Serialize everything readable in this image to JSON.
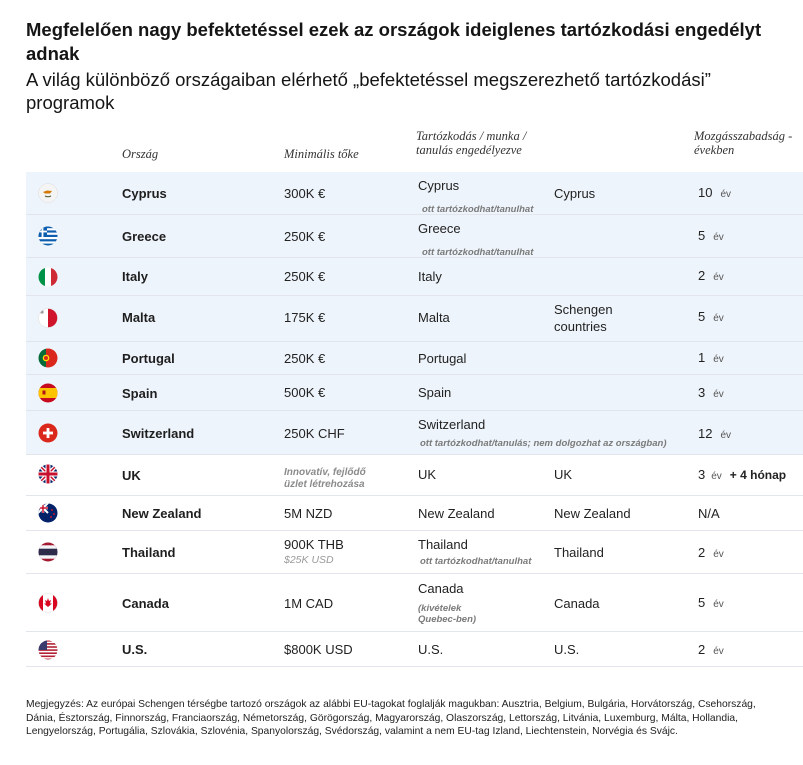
{
  "title": "Megfelelően nagy befektetéssel ezek az országok ideiglenes tartózkodási engedélyt adnak",
  "subtitle": "A világ különböző országaiban elérhető „befektetéssel megszerezhető tartózkodási” programok",
  "headers": {
    "country": "Ország",
    "capital": "Minimális tőke",
    "permit": "Tartózkodás / munka / tanulás engedélyezve",
    "mobility": "Mozgásszabadság - években"
  },
  "year_unit": "év",
  "rows": [
    {
      "country": "Cyprus",
      "flag": "flag-cyprus-icon",
      "capital": "300K €",
      "permit": "Cyprus",
      "permit_note": "ott tartózkodhat/tanulhat",
      "mobility": "Cyprus",
      "years": "10"
    },
    {
      "country": "Greece",
      "flag": "flag-greece-icon",
      "capital": "250K €",
      "permit": "Greece",
      "permit_note": "ott tartózkodhat/tanulhat",
      "mobility": "",
      "years": "5"
    },
    {
      "country": "Italy",
      "flag": "flag-italy-icon",
      "capital": "250K €",
      "permit": "Italy",
      "mobility": "",
      "years": "2"
    },
    {
      "country": "Malta",
      "flag": "flag-malta-icon",
      "capital": "175K €",
      "permit": "Malta",
      "mobility": "Schengen countries",
      "years": "5"
    },
    {
      "country": "Portugal",
      "flag": "flag-portugal-icon",
      "capital": "250K €",
      "permit": "Portugal",
      "mobility": "",
      "years": "1"
    },
    {
      "country": "Spain",
      "flag": "flag-spain-icon",
      "capital": "500K €",
      "permit": "Spain",
      "mobility": "",
      "years": "3"
    },
    {
      "country": "Switzerland",
      "flag": "flag-switzerland-icon",
      "capital": "250K CHF",
      "permit": "Switzerland",
      "permit_note": "ott tartózkodhat/tanulás; nem dolgozhat az országban)",
      "mobility": "",
      "years": "12"
    },
    {
      "country": "UK",
      "flag": "flag-uk-icon",
      "capital": "Innovatív, fejlődő üzlet létrehozása",
      "permit": "UK",
      "mobility": "UK",
      "years": "3",
      "years_extra": "+ 4 hónap"
    },
    {
      "country": "New Zealand",
      "flag": "flag-new-zealand-icon",
      "capital": "5M NZD",
      "permit": "New Zealand",
      "mobility": "New Zealand",
      "years": "N/A"
    },
    {
      "country": "Thailand",
      "flag": "flag-thailand-icon",
      "capital": "900K THB",
      "capital_sub": "$25K USD",
      "permit": "Thailand",
      "permit_note": "ott tartózkodhat/tanulhat",
      "mobility": "Thailand",
      "years": "2"
    },
    {
      "country": "Canada",
      "flag": "flag-canada-icon",
      "capital": "1M CAD",
      "permit": "Canada",
      "permit_note": "(kivételek Quebec-ben)",
      "mobility": "Canada",
      "years": "5"
    },
    {
      "country": "U.S.",
      "flag": "flag-us-icon",
      "capital": "$800K USD",
      "permit": "U.S.",
      "mobility": "U.S.",
      "years": "2"
    }
  ],
  "footnote": "Megjegyzés: Az európai Schengen térségbe tartozó országok az alábbi EU-tagokat foglalják magukban: Ausztria, Belgium, Bulgária, Horvátország, Csehország, Dánia, Észtország, Finnország, Franciaország, Németország, Görögország, Magyarország, Olaszország, Lettország, Litvánia, Luxemburg, Málta, Hollandia, Lengyelország, Portugália, Szlovákia, Szlovénia, Spanyolország, Svédország, valamint a nem EU-tag Izland, Liechtenstein, Norvégia és Svájc."
}
